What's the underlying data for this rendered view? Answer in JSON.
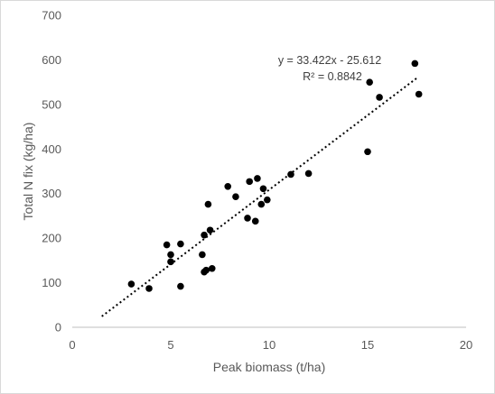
{
  "chart_data": {
    "type": "scatter",
    "xlabel": "Peak biomass (t/ha)",
    "ylabel": "Total N fix (kg/ha)",
    "xlim": [
      0,
      20
    ],
    "ylim": [
      0,
      700
    ],
    "x_ticks": [
      "0",
      "5",
      "10",
      "15",
      "20"
    ],
    "y_ticks": [
      "0",
      "100",
      "200",
      "300",
      "400",
      "500",
      "600",
      "700"
    ],
    "grid": false,
    "legend": "none",
    "marker_color": "#000000",
    "trendline": {
      "type": "linear",
      "style": "dotted",
      "equation": "y = 33.422x - 25.612",
      "r_squared": "R² = 0.8842",
      "slope": 33.422,
      "intercept": -25.612,
      "x_range": [
        1.5,
        17.5
      ]
    },
    "points": [
      {
        "x": 3.0,
        "y": 97
      },
      {
        "x": 3.9,
        "y": 87
      },
      {
        "x": 4.8,
        "y": 185
      },
      {
        "x": 5.0,
        "y": 163
      },
      {
        "x": 5.0,
        "y": 147
      },
      {
        "x": 5.5,
        "y": 187
      },
      {
        "x": 5.5,
        "y": 92
      },
      {
        "x": 6.6,
        "y": 163
      },
      {
        "x": 6.7,
        "y": 207
      },
      {
        "x": 6.7,
        "y": 124
      },
      {
        "x": 6.8,
        "y": 128
      },
      {
        "x": 6.9,
        "y": 276
      },
      {
        "x": 7.0,
        "y": 218
      },
      {
        "x": 7.1,
        "y": 132
      },
      {
        "x": 7.9,
        "y": 316
      },
      {
        "x": 8.3,
        "y": 293
      },
      {
        "x": 8.9,
        "y": 245
      },
      {
        "x": 9.0,
        "y": 327
      },
      {
        "x": 9.3,
        "y": 238
      },
      {
        "x": 9.4,
        "y": 334
      },
      {
        "x": 9.6,
        "y": 276
      },
      {
        "x": 9.7,
        "y": 311
      },
      {
        "x": 9.9,
        "y": 286
      },
      {
        "x": 11.1,
        "y": 343
      },
      {
        "x": 12.0,
        "y": 345
      },
      {
        "x": 15.0,
        "y": 394
      },
      {
        "x": 15.1,
        "y": 550
      },
      {
        "x": 15.6,
        "y": 516
      },
      {
        "x": 17.4,
        "y": 592
      },
      {
        "x": 17.6,
        "y": 523
      }
    ]
  }
}
